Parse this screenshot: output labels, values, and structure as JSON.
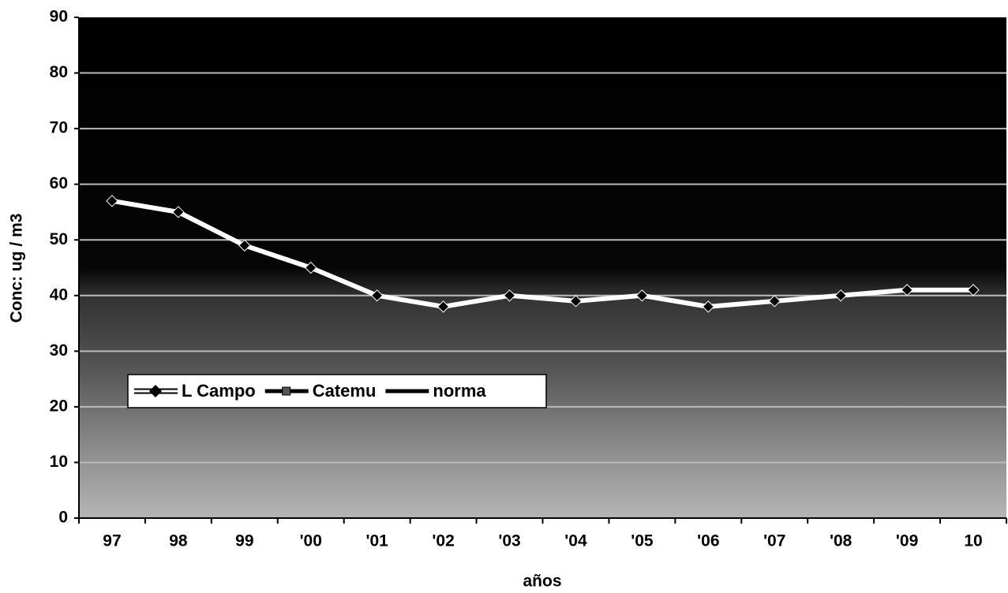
{
  "chart_data": {
    "type": "line",
    "x_label": "años",
    "y_label": "Conc: ug / m3",
    "categories": [
      "97",
      "98",
      "99",
      "'00",
      "'01",
      "'02",
      "'03",
      "'04",
      "'05",
      "'06",
      "'07",
      "'08",
      "'09",
      "10"
    ],
    "series": [
      {
        "name": "L Campo",
        "color": "#ffffff",
        "values": [
          57,
          55,
          49,
          45,
          40,
          38,
          40,
          39,
          40,
          38,
          39,
          40,
          41,
          41
        ]
      },
      {
        "name": "Catemu",
        "color": "#000000",
        "values": [
          null,
          null,
          null,
          null,
          null,
          null,
          null,
          null,
          null,
          null,
          null,
          null,
          null,
          null
        ]
      },
      {
        "name": "norma",
        "color": "#000000",
        "values": [
          null,
          null,
          null,
          null,
          null,
          null,
          null,
          null,
          null,
          null,
          null,
          null,
          null,
          null
        ]
      }
    ],
    "ylim": [
      0,
      90
    ],
    "yticks": [
      0,
      10,
      20,
      30,
      40,
      50,
      60,
      70,
      80,
      90
    ],
    "grid": true
  }
}
